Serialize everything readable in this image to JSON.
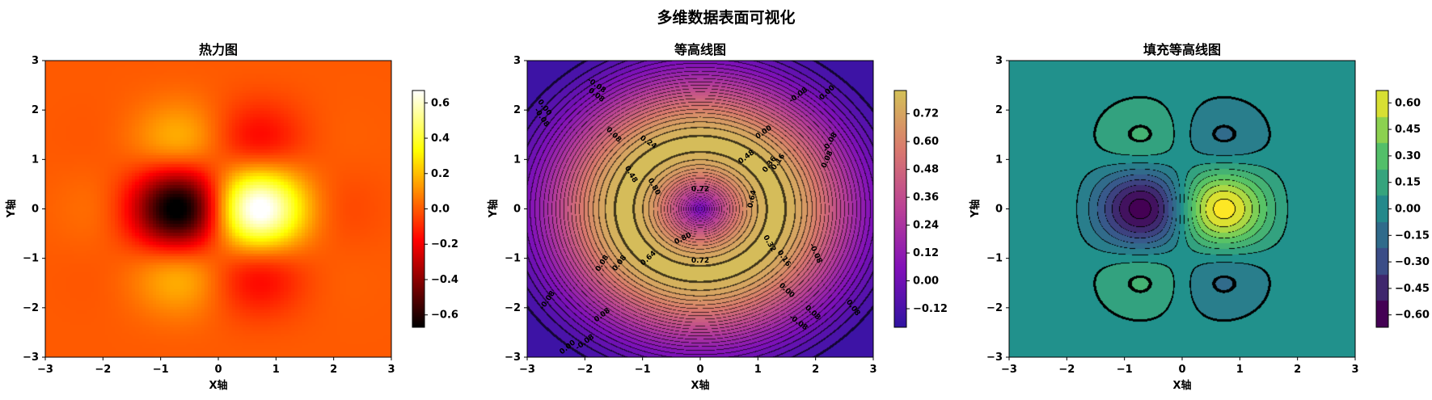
{
  "figure": {
    "suptitle": "多维数据表面可视化"
  },
  "chart_data": [
    {
      "type": "heatmap",
      "title": "热力图",
      "xlabel": "X轴",
      "ylabel": "Y轴",
      "xlim": [
        -3,
        3
      ],
      "ylim": [
        -3,
        3
      ],
      "xticks": [
        "−3",
        "−2",
        "−1",
        "0",
        "1",
        "2",
        "3"
      ],
      "yticks": [
        "−3",
        "−2",
        "−1",
        "0",
        "1",
        "2",
        "3"
      ],
      "function": "sin(πx/2)·cos(πy/2)·exp(−(x²+y²)/2)",
      "colormap": "hot",
      "vmin": -0.67,
      "vmax": 0.67,
      "colorbar_ticks": [
        "−0.6",
        "−0.4",
        "−0.2",
        "0.0",
        "0.2",
        "0.4",
        "0.6"
      ],
      "colorbar_tick_values": [
        -0.6,
        -0.4,
        -0.2,
        0.0,
        0.2,
        0.4,
        0.6
      ]
    },
    {
      "type": "contour",
      "title": "等高线图",
      "xlabel": "X轴",
      "ylabel": "Y轴",
      "xlim": [
        -3,
        3
      ],
      "ylim": [
        -3,
        3
      ],
      "xticks": [
        "−3",
        "−2",
        "−1",
        "0",
        "1",
        "2",
        "3"
      ],
      "yticks": [
        "−3",
        "−2",
        "−1",
        "0",
        "1",
        "2",
        "3"
      ],
      "function": "sin(√(x²+y²))·exp(−(x²+y²)/10)",
      "colormap": "plasma",
      "vmin": -0.2,
      "vmax": 0.82,
      "colorbar_ticks": [
        "−0.12",
        "0.00",
        "0.12",
        "0.24",
        "0.36",
        "0.48",
        "0.60",
        "0.72"
      ],
      "colorbar_tick_values": [
        -0.12,
        0.0,
        0.12,
        0.24,
        0.36,
        0.48,
        0.6,
        0.72
      ],
      "contour_labels": [
        {
          "text": "0.72",
          "x": 0.0,
          "y": 0.4
        },
        {
          "text": "0.80",
          "x": -0.8,
          "y": 0.45
        },
        {
          "text": "0.80",
          "x": -0.3,
          "y": -0.6
        },
        {
          "text": "0.72",
          "x": 0.0,
          "y": -1.05
        },
        {
          "text": "0.64",
          "x": -0.9,
          "y": -1.0
        },
        {
          "text": "0.64",
          "x": 0.9,
          "y": 0.2
        },
        {
          "text": "0.48",
          "x": -1.2,
          "y": 0.7
        },
        {
          "text": "0.48",
          "x": 0.8,
          "y": 1.05
        },
        {
          "text": "0.24",
          "x": -0.9,
          "y": 1.35
        },
        {
          "text": "0.16",
          "x": 1.35,
          "y": 0.95
        },
        {
          "text": "0.36",
          "x": 1.2,
          "y": 0.9
        },
        {
          "text": "0.32",
          "x": 1.2,
          "y": -0.7
        },
        {
          "text": "0.16",
          "x": 1.45,
          "y": -1.0
        },
        {
          "text": "0.08",
          "x": -1.4,
          "y": -1.1
        },
        {
          "text": "0.08",
          "x": -1.5,
          "y": 1.5
        },
        {
          "text": "0.00",
          "x": 1.5,
          "y": -1.65
        },
        {
          "text": "0.00",
          "x": 1.1,
          "y": 1.55
        },
        {
          "text": "0.00",
          "x": -2.7,
          "y": 2.05
        },
        {
          "text": "0.00",
          "x": 2.2,
          "y": 2.35
        },
        {
          "text": "0.00",
          "x": -2.3,
          "y": -2.8
        },
        {
          "text": "-0.08",
          "x": -2.75,
          "y": 1.85
        },
        {
          "text": "-0.08",
          "x": -1.8,
          "y": 2.5
        },
        {
          "text": "-0.08",
          "x": 1.7,
          "y": 2.3
        },
        {
          "text": "-0.08",
          "x": 2.25,
          "y": 1.35
        },
        {
          "text": "-0.08",
          "x": 2.0,
          "y": -0.9
        },
        {
          "text": "-0.08",
          "x": -2.0,
          "y": -2.7
        },
        {
          "text": "-0.08",
          "x": -2.65,
          "y": -1.85
        },
        {
          "text": "-0.08",
          "x": 1.7,
          "y": -2.3
        },
        {
          "text": "0.08",
          "x": -1.8,
          "y": 2.3
        },
        {
          "text": "0.08",
          "x": 2.2,
          "y": 1.0
        },
        {
          "text": "0.08",
          "x": -1.7,
          "y": -2.15
        },
        {
          "text": "0.08",
          "x": 1.95,
          "y": -2.1
        },
        {
          "text": "0.08",
          "x": 2.65,
          "y": -2.0
        },
        {
          "text": "0.08",
          "x": -1.7,
          "y": -1.1
        }
      ]
    },
    {
      "type": "filled-contour",
      "title": "填充等高线图",
      "xlabel": "X轴",
      "ylabel": "Y轴",
      "xlim": [
        -3,
        3
      ],
      "ylim": [
        -3,
        3
      ],
      "xticks": [
        "−3",
        "−2",
        "−1",
        "0",
        "1",
        "2",
        "3"
      ],
      "yticks": [
        "−3",
        "−2",
        "−1",
        "0",
        "1",
        "2",
        "3"
      ],
      "function": "sin(πx/2)·cos(πy/2)·exp(−(x²+y²)/2)",
      "colormap": "viridis",
      "vmin": -0.67,
      "vmax": 0.67,
      "colorbar_ticks": [
        "−0.60",
        "−0.45",
        "−0.30",
        "−0.15",
        "0.00",
        "0.15",
        "0.30",
        "0.45",
        "0.60"
      ],
      "colorbar_tick_values": [
        -0.6,
        -0.45,
        -0.3,
        -0.15,
        0.0,
        0.15,
        0.3,
        0.45,
        0.6
      ]
    }
  ]
}
